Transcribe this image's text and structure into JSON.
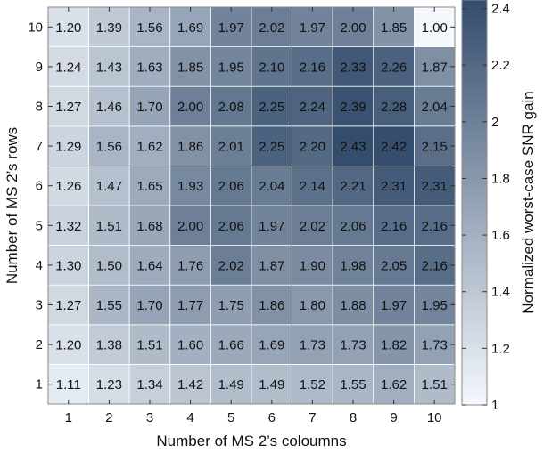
{
  "chart_data": {
    "type": "heatmap",
    "xlabel": "Number of MS 2’s coloumns",
    "ylabel": "Number of MS 2’s rows",
    "colorbar_label": "Normalized worst-case SNR gain",
    "x": [
      1,
      2,
      3,
      4,
      5,
      6,
      7,
      8,
      9,
      10
    ],
    "y": [
      1,
      2,
      3,
      4,
      5,
      6,
      7,
      8,
      9,
      10
    ],
    "x_tick_labels": [
      "1",
      "2",
      "3",
      "4",
      "5",
      "6",
      "7",
      "8",
      "9",
      "10"
    ],
    "y_tick_labels": [
      "1",
      "2",
      "3",
      "4",
      "5",
      "6",
      "7",
      "8",
      "9",
      "10"
    ],
    "values": [
      [
        "1.11",
        "1.23",
        "1.34",
        "1.42",
        "1.49",
        "1.49",
        "1.52",
        "1.55",
        "1.62",
        "1.51"
      ],
      [
        "1.20",
        "1.38",
        "1.51",
        "1.60",
        "1.66",
        "1.69",
        "1.73",
        "1.73",
        "1.82",
        "1.73"
      ],
      [
        "1.27",
        "1.55",
        "1.70",
        "1.77",
        "1.75",
        "1.86",
        "1.80",
        "1.88",
        "1.97",
        "1.95"
      ],
      [
        "1.30",
        "1.50",
        "1.64",
        "1.76",
        "2.02",
        "1.87",
        "1.90",
        "1.98",
        "2.05",
        "2.16"
      ],
      [
        "1.32",
        "1.51",
        "1.68",
        "2.00",
        "2.06",
        "1.97",
        "2.02",
        "2.06",
        "2.16",
        "2.16"
      ],
      [
        "1.26",
        "1.47",
        "1.65",
        "1.93",
        "2.06",
        "2.04",
        "2.14",
        "2.21",
        "2.31",
        "2.31"
      ],
      [
        "1.29",
        "1.56",
        "1.62",
        "1.86",
        "2.01",
        "2.25",
        "2.20",
        "2.43",
        "2.42",
        "2.15"
      ],
      [
        "1.27",
        "1.46",
        "1.70",
        "2.00",
        "2.08",
        "2.25",
        "2.24",
        "2.39",
        "2.28",
        "2.04"
      ],
      [
        "1.24",
        "1.43",
        "1.63",
        "1.85",
        "1.95",
        "2.10",
        "2.16",
        "2.33",
        "2.26",
        "1.87"
      ],
      [
        "1.20",
        "1.39",
        "1.56",
        "1.69",
        "1.97",
        "2.02",
        "1.97",
        "2.00",
        "1.85",
        "1.00"
      ]
    ],
    "color_range": [
      1,
      2.43
    ],
    "colorbar_ticks": [
      "1",
      "1.2",
      "1.4",
      "1.6",
      "1.8",
      "2",
      "2.2",
      "2.4"
    ],
    "colormap": {
      "low": "#f4f8fd",
      "high": "#344d6d"
    },
    "grid": true
  }
}
